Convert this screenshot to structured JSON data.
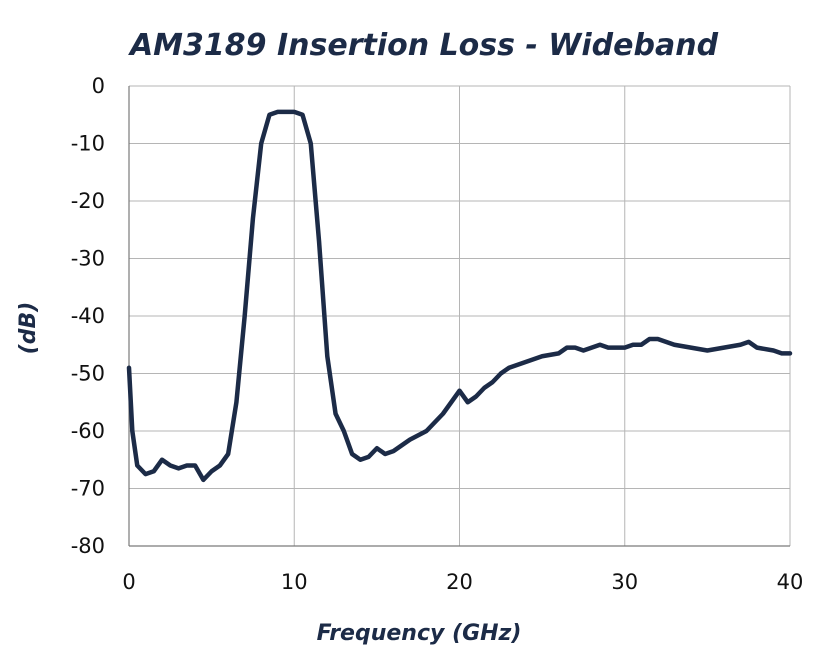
{
  "chart_data": {
    "type": "line",
    "title": "AM3189 Insertion Loss - Wideband",
    "xlabel": "Frequency (GHz)",
    "ylabel": "(dB)",
    "xlim": [
      0,
      40
    ],
    "ylim": [
      -80,
      0
    ],
    "xticks": [
      "0",
      "10",
      "20",
      "30",
      "40"
    ],
    "yticks": [
      "0",
      "-10",
      "-20",
      "-30",
      "-40",
      "-50",
      "-60",
      "-70",
      "-80"
    ],
    "grid": true,
    "legend": "none",
    "series": [
      {
        "color": "#1c2b47",
        "x": [
          0,
          0.2,
          0.5,
          1,
          1.5,
          2,
          2.5,
          3,
          3.5,
          4,
          4.5,
          5,
          5.5,
          6,
          6.5,
          7,
          7.5,
          8,
          8.5,
          9,
          9.5,
          10,
          10.5,
          11,
          11.5,
          12,
          12.5,
          13,
          13.5,
          14,
          14.5,
          15,
          15.5,
          16,
          17,
          18,
          19,
          19.5,
          20,
          20.5,
          21,
          21.5,
          22,
          22.5,
          23,
          24,
          25,
          26,
          26.5,
          27,
          27.5,
          28,
          28.5,
          29,
          30,
          30.5,
          31,
          31.5,
          32,
          33,
          34,
          35,
          36,
          37,
          37.5,
          38,
          39,
          39.5,
          40
        ],
        "y": [
          -49,
          -60,
          -66,
          -67.5,
          -67,
          -65,
          -66,
          -66.5,
          -66,
          -66,
          -68.5,
          -67,
          -66,
          -64,
          -55,
          -40,
          -23,
          -10,
          -5,
          -4.5,
          -4.5,
          -4.5,
          -5,
          -10,
          -27,
          -47,
          -57,
          -60,
          -64,
          -65,
          -64.5,
          -63,
          -64,
          -63.5,
          -61.5,
          -60,
          -57,
          -55,
          -53,
          -55,
          -54,
          -52.5,
          -51.5,
          -50,
          -49,
          -48,
          -47,
          -46.5,
          -45.5,
          -45.5,
          -46,
          -45.5,
          -45,
          -45.5,
          -45.5,
          -45,
          -45,
          -44,
          -44,
          -45,
          -45.5,
          -46,
          -45.5,
          -45,
          -44.5,
          -45.5,
          -46,
          -46.5,
          -46.5
        ]
      }
    ]
  }
}
